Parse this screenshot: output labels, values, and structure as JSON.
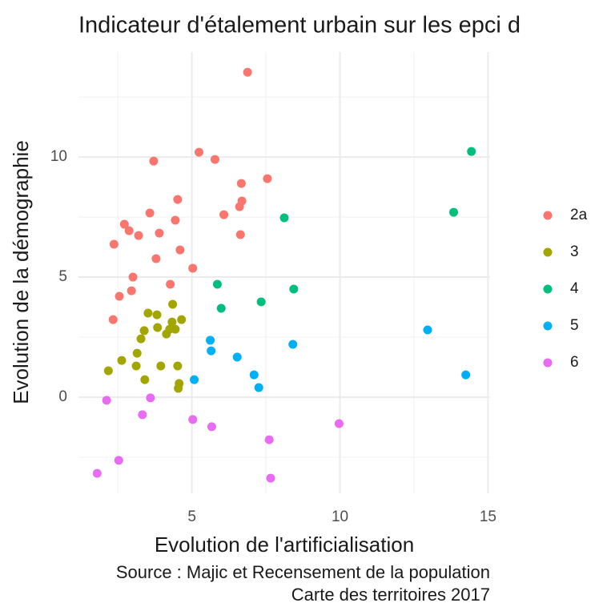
{
  "chart_data": {
    "type": "scatter",
    "title": "Indicateur d'étalement urbain sur les epci d",
    "x_label": "Evolution de l'artificialisation",
    "y_label": "Evolution de la démographie",
    "caption": [
      "Source : Majic et Recensement de la population",
      "Carte des territoires 2017"
    ],
    "xlim": [
      1.17,
      15.07
    ],
    "ylim": [
      -4.0,
      14.37
    ],
    "xticks": [
      5,
      10,
      15
    ],
    "yticks": [
      0,
      5,
      10
    ],
    "xminor": [
      2.5,
      7.5,
      12.5
    ],
    "yminor": [
      -2.5,
      2.5,
      7.5,
      12.5
    ],
    "grid": true,
    "legend": "right",
    "series": [
      {
        "name": "2a",
        "color": "#F8766D",
        "x": [
          6.88,
          5.24,
          5.78,
          3.71,
          7.55,
          6.67,
          4.52,
          6.69,
          6.61,
          3.58,
          6.08,
          4.44,
          2.72,
          2.88,
          3.9,
          3.2,
          6.64,
          2.37,
          4.6,
          3.79,
          5.03,
          3.01,
          4.27,
          2.96,
          2.55,
          2.34
        ],
        "y": [
          13.53,
          10.2,
          9.9,
          9.83,
          9.1,
          8.9,
          8.23,
          8.17,
          7.93,
          7.67,
          7.6,
          7.37,
          7.2,
          6.93,
          6.83,
          6.73,
          6.77,
          6.37,
          6.13,
          5.77,
          5.37,
          5.0,
          4.7,
          4.43,
          4.2,
          3.23
        ]
      },
      {
        "name": "3",
        "color": "#A3A500",
        "x": [
          3.52,
          3.82,
          4.35,
          4.33,
          4.65,
          3.84,
          3.39,
          4.25,
          4.44,
          4.14,
          3.28,
          3.15,
          2.63,
          3.12,
          3.95,
          4.52,
          2.18,
          3.41,
          4.57,
          4.54
        ],
        "y": [
          3.5,
          3.43,
          3.87,
          3.13,
          3.23,
          2.9,
          2.77,
          2.83,
          2.83,
          2.63,
          2.43,
          1.83,
          1.53,
          1.3,
          1.3,
          1.3,
          1.1,
          0.73,
          0.57,
          0.37
        ]
      },
      {
        "name": "4",
        "color": "#00BF7D",
        "x": [
          14.44,
          13.84,
          8.12,
          5.86,
          8.44,
          7.34,
          5.99
        ],
        "y": [
          10.23,
          7.7,
          7.47,
          4.7,
          4.5,
          3.97,
          3.7
        ]
      },
      {
        "name": "5",
        "color": "#00B0F6",
        "x": [
          12.96,
          5.62,
          8.41,
          5.65,
          6.53,
          7.1,
          14.25,
          5.08,
          7.26
        ],
        "y": [
          2.8,
          2.37,
          2.2,
          1.93,
          1.67,
          0.93,
          0.93,
          0.73,
          0.4
        ]
      },
      {
        "name": "6",
        "color": "#E76BF3",
        "x": [
          2.12,
          3.6,
          3.33,
          5.03,
          9.97,
          5.67,
          7.61,
          2.53,
          1.8,
          7.66
        ],
        "y": [
          -0.13,
          -0.03,
          -0.73,
          -0.93,
          -1.1,
          -1.23,
          -1.77,
          -2.63,
          -3.17,
          -3.37
        ]
      }
    ]
  }
}
